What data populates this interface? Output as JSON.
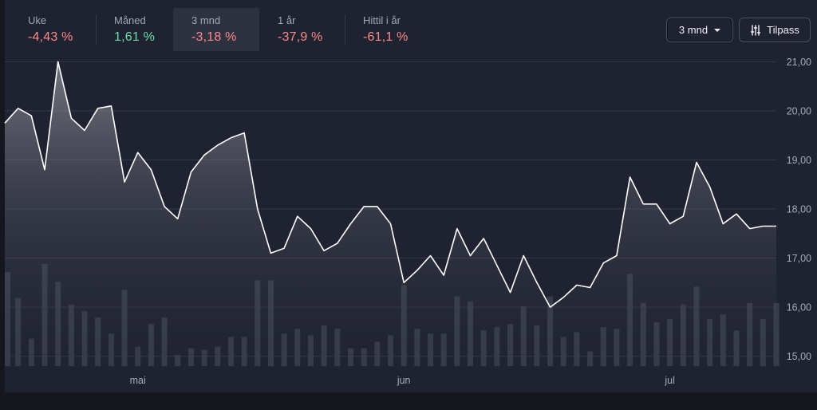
{
  "performance": [
    {
      "label": "Uke",
      "value": "-4,43 %",
      "trend": "negative"
    },
    {
      "label": "Måned",
      "value": "1,61 %",
      "trend": "positive"
    },
    {
      "label": "3 mnd",
      "value": "-3,18 %",
      "trend": "negative",
      "active": true
    },
    {
      "label": "1 år",
      "value": "-37,9 %",
      "trend": "negative"
    },
    {
      "label": "Hittil i år",
      "value": "-61,1 %",
      "trend": "negative"
    }
  ],
  "controls": {
    "period_label": "3 mnd",
    "custom_label": "Tilpass"
  },
  "colors": {
    "background": "#1f2230",
    "line": "#ffffff",
    "volume_bar": "#3b3f4d",
    "negative": "#ff8a8a",
    "positive": "#6fe0a8"
  },
  "chart_data": {
    "type": "line",
    "title": "",
    "xlabel": "",
    "ylabel": "",
    "ylim": [
      14.75,
      21.25
    ],
    "y_ticks": [
      "15,00",
      "16,00",
      "17,00",
      "18,00",
      "19,00",
      "20,00",
      "21,00"
    ],
    "y_tick_values": [
      15,
      16,
      17,
      18,
      19,
      20,
      21
    ],
    "x_tick_labels": [
      {
        "label": "mai",
        "index": 10
      },
      {
        "label": "jun",
        "index": 30
      },
      {
        "label": "jul",
        "index": 50
      }
    ],
    "grid": true,
    "series": [
      {
        "values": [
          19.75,
          20.05,
          19.9,
          18.8,
          21.0,
          19.85,
          19.6,
          20.05,
          20.1,
          18.55,
          19.15,
          18.8,
          18.05,
          17.8,
          18.75,
          19.1,
          19.3,
          19.45,
          19.55,
          18.0,
          17.1,
          17.2,
          17.85,
          17.6,
          17.15,
          17.3,
          17.7,
          18.05,
          18.05,
          17.7,
          16.5,
          16.75,
          17.05,
          16.65,
          17.6,
          17.05,
          17.4,
          16.85,
          16.3,
          17.05,
          16.5,
          16.0,
          16.2,
          16.45,
          16.4,
          16.9,
          17.05,
          18.65,
          18.1,
          18.1,
          17.7,
          17.85,
          18.95,
          18.45,
          17.7,
          17.9,
          17.6,
          17.65,
          17.65
        ]
      }
    ],
    "volume": [
      0.58,
      0.42,
      0.17,
      0.63,
      0.52,
      0.38,
      0.34,
      0.3,
      0.2,
      0.47,
      0.12,
      0.26,
      0.3,
      0.07,
      0.11,
      0.1,
      0.12,
      0.18,
      0.18,
      0.53,
      0.53,
      0.2,
      0.23,
      0.19,
      0.25,
      0.23,
      0.11,
      0.11,
      0.15,
      0.19,
      0.5,
      0.23,
      0.2,
      0.2,
      0.43,
      0.4,
      0.22,
      0.24,
      0.26,
      0.37,
      0.25,
      0.43,
      0.18,
      0.21,
      0.09,
      0.24,
      0.23,
      0.57,
      0.39,
      0.27,
      0.29,
      0.38,
      0.49,
      0.29,
      0.32,
      0.22,
      0.39,
      0.29,
      0.39
    ]
  }
}
